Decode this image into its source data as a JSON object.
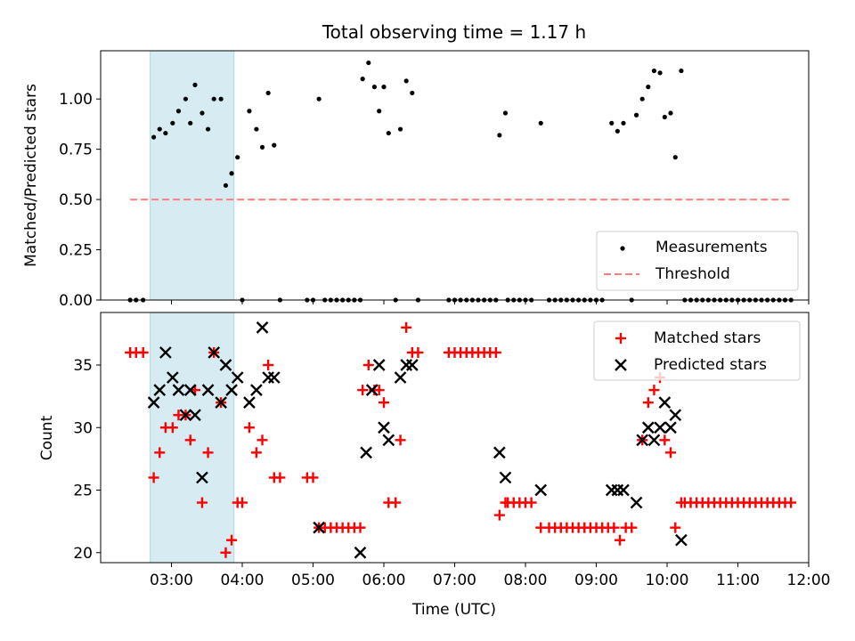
{
  "figure_title": "Total observing time = 1.17 h",
  "colors": {
    "measurement": "#000000",
    "threshold": "#ff7f7f",
    "matched": "#ff0000",
    "predicted": "#000000",
    "span": "#add8e6"
  },
  "chart_data": [
    {
      "type": "scatter",
      "id": "ratio",
      "title": "Total observing time = 1.17 h",
      "xlabel": "",
      "ylabel": "Matched/Predicted stars",
      "xlim": [
        "02:00",
        "12:00"
      ],
      "ylim": [
        0,
        1.24
      ],
      "yticks": [
        "0.00",
        "0.25",
        "0.50",
        "0.75",
        "1.00"
      ],
      "highlight_span": [
        "02:42",
        "03:53"
      ],
      "legend_position": "lower-right",
      "legend": [
        "Measurements",
        "Threshold"
      ],
      "threshold": {
        "name": "Threshold",
        "y": 0.5,
        "x": [
          "02:25",
          "11:45"
        ],
        "style": "dashed"
      },
      "series": [
        {
          "name": "Measurements",
          "marker": "dot",
          "points": [
            [
              "02:25",
              0
            ],
            [
              "02:30",
              0
            ],
            [
              "02:36",
              0
            ],
            [
              "02:45",
              0.81
            ],
            [
              "02:50",
              0.85
            ],
            [
              "02:55",
              0.83
            ],
            [
              "03:01",
              0.88
            ],
            [
              "03:06",
              0.94
            ],
            [
              "03:12",
              1.0
            ],
            [
              "03:16",
              0.88
            ],
            [
              "03:20",
              1.07
            ],
            [
              "03:26",
              0.93
            ],
            [
              "03:31",
              0.85
            ],
            [
              "03:36",
              1.0
            ],
            [
              "03:42",
              1.0
            ],
            [
              "03:46",
              0.57
            ],
            [
              "03:51",
              0.63
            ],
            [
              "03:56",
              0.71
            ],
            [
              "04:00",
              0
            ],
            [
              "04:06",
              0.94
            ],
            [
              "04:12",
              0.85
            ],
            [
              "04:17",
              0.76
            ],
            [
              "04:22",
              1.03
            ],
            [
              "04:27",
              0.77
            ],
            [
              "04:32",
              0
            ],
            [
              "04:55",
              0
            ],
            [
              "05:00",
              0
            ],
            [
              "05:05",
              1.0
            ],
            [
              "05:10",
              0
            ],
            [
              "05:15",
              0
            ],
            [
              "05:20",
              0
            ],
            [
              "05:25",
              0
            ],
            [
              "05:30",
              0
            ],
            [
              "05:35",
              0
            ],
            [
              "05:40",
              0
            ],
            [
              "05:42",
              1.1
            ],
            [
              "05:47",
              1.18
            ],
            [
              "05:52",
              1.06
            ],
            [
              "05:56",
              0.94
            ],
            [
              "06:00",
              1.06
            ],
            [
              "06:04",
              0.83
            ],
            [
              "06:10",
              0
            ],
            [
              "06:14",
              0.85
            ],
            [
              "06:19",
              1.09
            ],
            [
              "06:24",
              1.03
            ],
            [
              "06:29",
              0
            ],
            [
              "06:55",
              0
            ],
            [
              "07:00",
              0
            ],
            [
              "07:05",
              0
            ],
            [
              "07:10",
              0
            ],
            [
              "07:15",
              0
            ],
            [
              "07:20",
              0
            ],
            [
              "07:25",
              0
            ],
            [
              "07:30",
              0
            ],
            [
              "07:35",
              0
            ],
            [
              "07:38",
              0.82
            ],
            [
              "07:43",
              0.93
            ],
            [
              "07:45",
              0
            ],
            [
              "07:50",
              0
            ],
            [
              "07:55",
              0
            ],
            [
              "08:00",
              0
            ],
            [
              "08:05",
              0
            ],
            [
              "08:13",
              0.88
            ],
            [
              "08:20",
              0
            ],
            [
              "08:25",
              0
            ],
            [
              "08:30",
              0
            ],
            [
              "08:35",
              0
            ],
            [
              "08:40",
              0
            ],
            [
              "08:45",
              0
            ],
            [
              "08:50",
              0
            ],
            [
              "08:55",
              0
            ],
            [
              "09:00",
              0
            ],
            [
              "09:05",
              0
            ],
            [
              "09:13",
              0.88
            ],
            [
              "09:18",
              0.84
            ],
            [
              "09:23",
              0.88
            ],
            [
              "09:30",
              0
            ],
            [
              "09:34",
              0.92
            ],
            [
              "09:39",
              1.0
            ],
            [
              "09:44",
              1.06
            ],
            [
              "09:49",
              1.14
            ],
            [
              "09:54",
              1.13
            ],
            [
              "09:58",
              0.91
            ],
            [
              "10:03",
              0.93
            ],
            [
              "10:07",
              0.71
            ],
            [
              "10:12",
              1.14
            ],
            [
              "10:15",
              0
            ],
            [
              "10:20",
              0
            ],
            [
              "10:25",
              0
            ],
            [
              "10:30",
              0
            ],
            [
              "10:35",
              0
            ],
            [
              "10:40",
              0
            ],
            [
              "10:45",
              0
            ],
            [
              "10:50",
              0
            ],
            [
              "10:55",
              0
            ],
            [
              "11:00",
              0
            ],
            [
              "11:05",
              0
            ],
            [
              "11:10",
              0
            ],
            [
              "11:15",
              0
            ],
            [
              "11:20",
              0
            ],
            [
              "11:25",
              0
            ],
            [
              "11:30",
              0
            ],
            [
              "11:35",
              0
            ],
            [
              "11:40",
              0
            ],
            [
              "11:45",
              0
            ]
          ]
        }
      ]
    },
    {
      "type": "scatter",
      "id": "counts",
      "title": "",
      "xlabel": "Time (UTC)",
      "ylabel": "Count",
      "xlim": [
        "02:00",
        "12:00"
      ],
      "ylim": [
        19.2,
        39.2
      ],
      "xticks": [
        "03:00",
        "04:00",
        "05:00",
        "06:00",
        "07:00",
        "08:00",
        "09:00",
        "10:00",
        "11:00",
        "12:00"
      ],
      "yticks": [
        "20",
        "25",
        "30",
        "35"
      ],
      "highlight_span": [
        "02:42",
        "03:53"
      ],
      "legend_position": "upper-right",
      "legend": [
        "Matched stars",
        "Predicted stars"
      ],
      "series": [
        {
          "name": "Matched stars",
          "marker": "plus",
          "points": [
            [
              "02:25",
              36
            ],
            [
              "02:30",
              36
            ],
            [
              "02:36",
              36
            ],
            [
              "02:45",
              26
            ],
            [
              "02:50",
              28
            ],
            [
              "02:55",
              30
            ],
            [
              "03:01",
              30
            ],
            [
              "03:06",
              31
            ],
            [
              "03:12",
              31
            ],
            [
              "03:16",
              29
            ],
            [
              "03:20",
              33
            ],
            [
              "03:26",
              24
            ],
            [
              "03:31",
              28
            ],
            [
              "03:36",
              36
            ],
            [
              "03:42",
              32
            ],
            [
              "03:46",
              20
            ],
            [
              "03:51",
              21
            ],
            [
              "03:56",
              24
            ],
            [
              "04:00",
              24
            ],
            [
              "04:06",
              30
            ],
            [
              "04:12",
              28
            ],
            [
              "04:17",
              29
            ],
            [
              "04:22",
              35
            ],
            [
              "04:27",
              26
            ],
            [
              "04:32",
              26
            ],
            [
              "04:55",
              26
            ],
            [
              "05:00",
              26
            ],
            [
              "05:05",
              22
            ],
            [
              "05:10",
              22
            ],
            [
              "05:15",
              22
            ],
            [
              "05:20",
              22
            ],
            [
              "05:25",
              22
            ],
            [
              "05:30",
              22
            ],
            [
              "05:35",
              22
            ],
            [
              "05:40",
              22
            ],
            [
              "05:42",
              33
            ],
            [
              "05:47",
              35
            ],
            [
              "05:52",
              33
            ],
            [
              "05:56",
              33
            ],
            [
              "06:00",
              32
            ],
            [
              "06:04",
              24
            ],
            [
              "06:10",
              24
            ],
            [
              "06:14",
              29
            ],
            [
              "06:19",
              38
            ],
            [
              "06:24",
              36
            ],
            [
              "06:29",
              36
            ],
            [
              "06:55",
              36
            ],
            [
              "07:00",
              36
            ],
            [
              "07:05",
              36
            ],
            [
              "07:10",
              36
            ],
            [
              "07:15",
              36
            ],
            [
              "07:20",
              36
            ],
            [
              "07:25",
              36
            ],
            [
              "07:30",
              36
            ],
            [
              "07:35",
              36
            ],
            [
              "07:38",
              23
            ],
            [
              "07:43",
              24
            ],
            [
              "07:45",
              24
            ],
            [
              "07:50",
              24
            ],
            [
              "07:55",
              24
            ],
            [
              "08:00",
              24
            ],
            [
              "08:05",
              24
            ],
            [
              "08:13",
              22
            ],
            [
              "08:20",
              22
            ],
            [
              "08:25",
              22
            ],
            [
              "08:30",
              22
            ],
            [
              "08:35",
              22
            ],
            [
              "08:40",
              22
            ],
            [
              "08:45",
              22
            ],
            [
              "08:50",
              22
            ],
            [
              "08:55",
              22
            ],
            [
              "09:00",
              22
            ],
            [
              "09:05",
              22
            ],
            [
              "09:10",
              22
            ],
            [
              "09:15",
              22
            ],
            [
              "09:20",
              21
            ],
            [
              "09:25",
              22
            ],
            [
              "09:30",
              22
            ],
            [
              "09:39",
              29
            ],
            [
              "09:44",
              32
            ],
            [
              "09:49",
              33
            ],
            [
              "09:54",
              34
            ],
            [
              "09:58",
              29
            ],
            [
              "10:03",
              28
            ],
            [
              "10:07",
              22
            ],
            [
              "10:12",
              24
            ],
            [
              "10:15",
              24
            ],
            [
              "10:20",
              24
            ],
            [
              "10:25",
              24
            ],
            [
              "10:30",
              24
            ],
            [
              "10:35",
              24
            ],
            [
              "10:40",
              24
            ],
            [
              "10:45",
              24
            ],
            [
              "10:50",
              24
            ],
            [
              "10:55",
              24
            ],
            [
              "11:00",
              24
            ],
            [
              "11:05",
              24
            ],
            [
              "11:10",
              24
            ],
            [
              "11:15",
              24
            ],
            [
              "11:20",
              24
            ],
            [
              "11:25",
              24
            ],
            [
              "11:30",
              24
            ],
            [
              "11:35",
              24
            ],
            [
              "11:40",
              24
            ],
            [
              "11:45",
              24
            ]
          ]
        },
        {
          "name": "Predicted stars",
          "marker": "x",
          "points": [
            [
              "02:45",
              32
            ],
            [
              "02:50",
              33
            ],
            [
              "02:55",
              36
            ],
            [
              "03:01",
              34
            ],
            [
              "03:06",
              33
            ],
            [
              "03:12",
              31
            ],
            [
              "03:16",
              33
            ],
            [
              "03:20",
              31
            ],
            [
              "03:26",
              26
            ],
            [
              "03:31",
              33
            ],
            [
              "03:36",
              36
            ],
            [
              "03:42",
              32
            ],
            [
              "03:46",
              35
            ],
            [
              "03:51",
              33
            ],
            [
              "03:56",
              34
            ],
            [
              "04:06",
              32
            ],
            [
              "04:12",
              33
            ],
            [
              "04:17",
              38
            ],
            [
              "04:22",
              34
            ],
            [
              "04:27",
              34
            ],
            [
              "05:05",
              22
            ],
            [
              "05:40",
              20
            ],
            [
              "05:45",
              28
            ],
            [
              "05:50",
              33
            ],
            [
              "05:56",
              35
            ],
            [
              "06:00",
              30
            ],
            [
              "06:04",
              29
            ],
            [
              "06:14",
              34
            ],
            [
              "06:19",
              35
            ],
            [
              "06:24",
              35
            ],
            [
              "07:38",
              28
            ],
            [
              "07:43",
              26
            ],
            [
              "08:13",
              25
            ],
            [
              "09:13",
              25
            ],
            [
              "09:18",
              25
            ],
            [
              "09:23",
              25
            ],
            [
              "09:34",
              24
            ],
            [
              "09:39",
              29
            ],
            [
              "09:44",
              30
            ],
            [
              "09:49",
              29
            ],
            [
              "09:54",
              30
            ],
            [
              "09:58",
              32
            ],
            [
              "10:03",
              30
            ],
            [
              "10:07",
              31
            ],
            [
              "10:12",
              21
            ]
          ]
        }
      ]
    }
  ]
}
